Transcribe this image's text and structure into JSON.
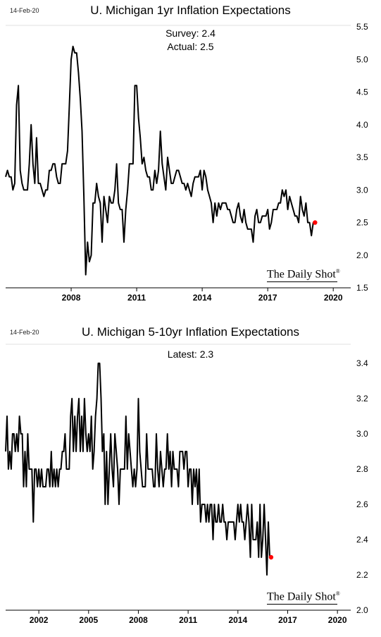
{
  "chart_data": [
    {
      "type": "line",
      "date_stamp": "14-Feb-20",
      "title": "U. Michigan 1yr Inflation Expectations",
      "annotations": [
        "Survey: 2.4",
        "Actual:  2.5"
      ],
      "brand": "The Daily Shot",
      "brand_mark": "®",
      "x_start": 2005.0,
      "x_step": 0.0833333,
      "xlim": [
        2005.0,
        2020.8
      ],
      "ylim": [
        1.5,
        5.5
      ],
      "xticks": [
        2008,
        2011,
        2014,
        2017,
        2020
      ],
      "yticks": [
        1.5,
        2.0,
        2.5,
        3.0,
        3.5,
        4.0,
        4.5,
        5.0,
        5.5
      ],
      "ytick_labels": [
        "1.5",
        "2.0",
        "2.5",
        "3.0",
        "3.5",
        "4.0",
        "4.5",
        "5.0",
        "5.5"
      ],
      "line_color": "#000000",
      "marker_color": "#ff0000",
      "last_value": 2.5,
      "values": [
        3.2,
        3.3,
        3.2,
        3.2,
        3.0,
        3.1,
        4.3,
        4.6,
        3.3,
        3.1,
        3.0,
        3.0,
        3.0,
        3.4,
        4.0,
        3.4,
        3.1,
        3.8,
        3.1,
        3.1,
        3.0,
        2.9,
        3.0,
        3.0,
        3.3,
        3.3,
        3.4,
        3.4,
        3.2,
        3.1,
        3.1,
        3.4,
        3.4,
        3.4,
        3.6,
        4.3,
        5.0,
        5.2,
        5.1,
        5.1,
        4.8,
        4.4,
        3.9,
        2.9,
        1.7,
        2.2,
        1.9,
        2.0,
        2.8,
        2.8,
        3.1,
        2.9,
        2.8,
        2.2,
        2.9,
        2.7,
        2.5,
        2.9,
        2.8,
        2.8,
        3.0,
        3.4,
        2.8,
        2.7,
        2.7,
        2.2,
        2.7,
        3.0,
        3.4,
        3.4,
        3.4,
        4.6,
        4.6,
        4.1,
        3.8,
        3.4,
        3.5,
        3.3,
        3.2,
        3.2,
        3.0,
        3.0,
        3.3,
        3.1,
        3.3,
        3.9,
        3.4,
        3.2,
        3.0,
        3.5,
        3.3,
        3.1,
        3.1,
        3.2,
        3.3,
        3.3,
        3.2,
        3.1,
        3.1,
        3.0,
        3.1,
        3.0,
        2.9,
        3.1,
        3.2,
        3.2,
        3.2,
        3.3,
        3.0,
        3.3,
        3.2,
        3.0,
        2.9,
        2.8,
        2.5,
        2.8,
        2.6,
        2.8,
        2.7,
        2.8,
        2.8,
        2.8,
        2.7,
        2.7,
        2.6,
        2.5,
        2.5,
        2.7,
        2.8,
        2.6,
        2.5,
        2.7,
        2.5,
        2.4,
        2.4,
        2.4,
        2.2,
        2.6,
        2.7,
        2.5,
        2.5,
        2.6,
        2.6,
        2.6,
        2.7,
        2.4,
        2.5,
        2.7,
        2.7,
        2.7,
        2.8,
        2.8,
        3.0,
        2.9,
        3.0,
        2.7,
        2.9,
        2.8,
        2.7,
        2.6,
        2.6,
        2.5,
        2.9,
        2.7,
        2.6,
        2.8,
        2.5,
        2.5,
        2.3,
        2.5,
        2.5
      ]
    },
    {
      "type": "line",
      "date_stamp": "14-Feb-20",
      "title": "U. Michigan 5-10yr Inflation Expectations",
      "annotations": [
        "Latest:  2.3"
      ],
      "brand": "The Daily Shot",
      "brand_mark": "®",
      "x_start": 2000.0,
      "x_step": 0.0833333,
      "xlim": [
        2000.0,
        2020.8
      ],
      "ylim": [
        2.0,
        3.5
      ],
      "xticks": [
        2002,
        2005,
        2008,
        2011,
        2014,
        2017,
        2020
      ],
      "yticks": [
        2.0,
        2.2,
        2.4,
        2.6,
        2.8,
        3.0,
        3.2,
        3.4
      ],
      "ytick_labels": [
        "2.0",
        "2.2",
        "2.4",
        "2.6",
        "2.8",
        "3.0",
        "3.2",
        "3.4"
      ],
      "line_color": "#000000",
      "marker_color": "#ff0000",
      "last_value": 2.3,
      "values": [
        2.9,
        3.1,
        2.8,
        2.9,
        2.8,
        3.0,
        3.0,
        2.9,
        3.0,
        2.9,
        3.1,
        3.0,
        3.0,
        2.7,
        2.9,
        2.7,
        3.0,
        2.8,
        2.8,
        2.8,
        2.5,
        2.8,
        2.8,
        2.7,
        2.8,
        2.7,
        2.8,
        2.7,
        2.7,
        2.7,
        2.8,
        2.8,
        2.7,
        2.9,
        2.7,
        2.8,
        2.7,
        2.8,
        2.7,
        2.8,
        2.8,
        2.9,
        2.9,
        3.0,
        2.8,
        2.8,
        2.8,
        3.1,
        3.2,
        2.9,
        3.1,
        2.9,
        3.1,
        3.2,
        2.9,
        3.1,
        2.9,
        3.2,
        3.0,
        2.9,
        3.0,
        2.9,
        3.1,
        2.8,
        2.9,
        3.1,
        3.2,
        3.4,
        3.4,
        3.2,
        2.9,
        3.0,
        2.6,
        2.9,
        2.6,
        2.8,
        3.0,
        2.8,
        2.7,
        3.0,
        2.9,
        2.8,
        2.6,
        2.8,
        2.8,
        2.8,
        2.8,
        3.1,
        2.8,
        3.0,
        2.9,
        2.8,
        2.7,
        2.8,
        2.7,
        2.8,
        3.2,
        2.9,
        2.8,
        2.7,
        2.7,
        2.7,
        3.0,
        2.8,
        2.8,
        2.8,
        2.8,
        2.7,
        2.7,
        3.0,
        2.8,
        2.7,
        2.9,
        2.8,
        2.7,
        2.8,
        2.8,
        3.0,
        2.8,
        2.9,
        2.7,
        2.9,
        2.8,
        2.8,
        2.8,
        2.7,
        2.9,
        2.9,
        2.9,
        2.8,
        2.9,
        2.9,
        2.7,
        2.8,
        2.8,
        2.6,
        2.8,
        2.7,
        2.8,
        2.6,
        2.8,
        2.5,
        2.6,
        2.6,
        2.6,
        2.5,
        2.6,
        2.5,
        2.6,
        2.6,
        2.4,
        2.6,
        2.5,
        2.5,
        2.6,
        2.5,
        2.5,
        2.6,
        2.5,
        2.5,
        2.4,
        2.5,
        2.5,
        2.5,
        2.5,
        2.5,
        2.4,
        2.5,
        2.6,
        2.5,
        2.6,
        2.5,
        2.5,
        2.4,
        2.5,
        2.6,
        2.5,
        2.3,
        2.6,
        2.4,
        2.4,
        2.4,
        2.5,
        2.3,
        2.6,
        2.3,
        2.4,
        2.6,
        2.4,
        2.2,
        2.5,
        2.3,
        2.3
      ]
    }
  ]
}
